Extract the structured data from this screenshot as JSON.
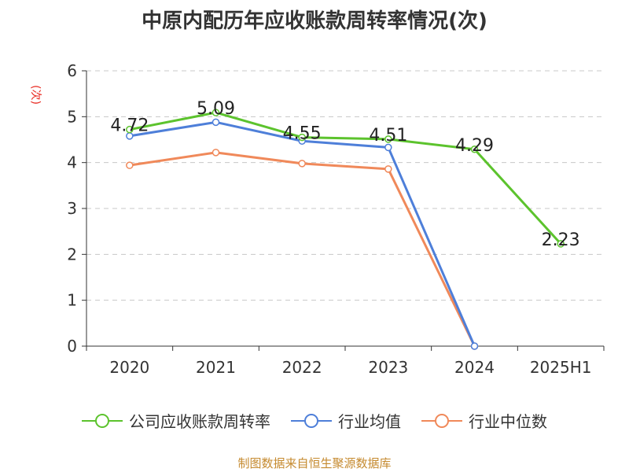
{
  "title": "中原内配历年应收账款周转率情况(次)",
  "source": "制图数据来自恒生聚源数据库",
  "chart_data": {
    "type": "line",
    "title": "中原内配历年应收账款周转率情况(次)",
    "ylabel": "(次)",
    "xlabel": "",
    "categories": [
      "2020",
      "2021",
      "2022",
      "2023",
      "2024",
      "2025H1"
    ],
    "ylim": [
      0,
      6
    ],
    "yticks": [
      "0",
      "1",
      "2",
      "3",
      "4",
      "5",
      "6"
    ],
    "grid": true,
    "legend_position": "bottom",
    "series": [
      {
        "name": "公司应收账款周转率",
        "color": "#5cc32d",
        "values": [
          4.72,
          5.09,
          4.55,
          4.51,
          4.29,
          2.23
        ],
        "labels": [
          "4.72",
          "5.09",
          "4.55",
          "4.51",
          "4.29",
          "2.23"
        ]
      },
      {
        "name": "行业均值",
        "color": "#4e7fd9",
        "values": [
          4.58,
          4.88,
          4.47,
          4.33,
          0,
          null
        ]
      },
      {
        "name": "行业中位数",
        "color": "#f0895a",
        "values": [
          3.94,
          4.22,
          3.98,
          3.86,
          0,
          null
        ]
      }
    ]
  }
}
